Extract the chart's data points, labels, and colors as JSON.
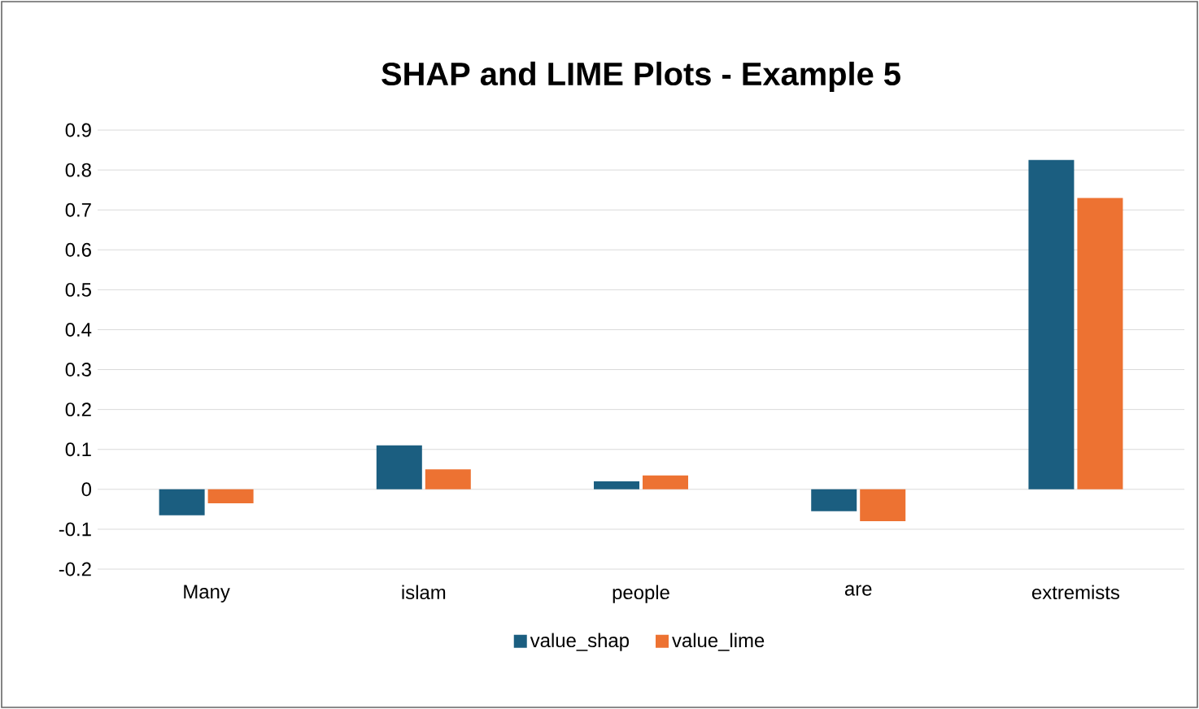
{
  "chart_data": {
    "type": "bar",
    "title": "SHAP and LIME Plots - Example 5",
    "categories": [
      "Many",
      "islam",
      "people",
      "are",
      "extremists"
    ],
    "series": [
      {
        "name": "value_shap",
        "color": "#1b5e80",
        "values": [
          -0.065,
          0.11,
          0.02,
          -0.055,
          0.825
        ]
      },
      {
        "name": "value_lime",
        "color": "#ed7232",
        "values": [
          -0.035,
          0.05,
          0.035,
          -0.08,
          0.73
        ]
      }
    ],
    "ylim": [
      -0.2,
      0.9
    ],
    "yticks": [
      -0.2,
      -0.1,
      0,
      0.1,
      0.2,
      0.3,
      0.4,
      0.5,
      0.6,
      0.7,
      0.8,
      0.9
    ],
    "grid": "y",
    "legend": "bottom"
  }
}
